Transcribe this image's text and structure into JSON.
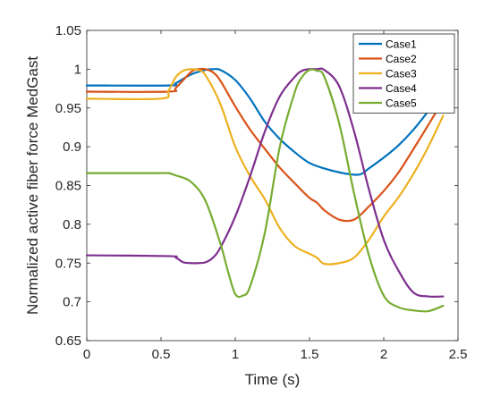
{
  "chart_data": {
    "type": "line",
    "title": "",
    "xlabel": "Time (s)",
    "ylabel": "Normalized active fiber force  MedGast",
    "xlim": [
      0,
      2.5
    ],
    "ylim": [
      0.65,
      1.05
    ],
    "xticks": [
      "0",
      "0.5",
      "1",
      "1.5",
      "2",
      "2.5"
    ],
    "yticks": [
      "0.65",
      "0.7",
      "0.75",
      "0.8",
      "0.85",
      "0.9",
      "0.95",
      "1",
      "1.05"
    ],
    "grid": false,
    "legend_position": "top-right",
    "series": [
      {
        "name": "Case1",
        "color": "#0072BD",
        "x": [
          0,
          0.55,
          0.6,
          0.7,
          0.8,
          0.85,
          0.9,
          1.0,
          1.1,
          1.2,
          1.3,
          1.4,
          1.5,
          1.6,
          1.7,
          1.8,
          1.85,
          1.9,
          2.0,
          2.1,
          2.2,
          2.3,
          2.4
        ],
        "y": [
          0.979,
          0.979,
          0.982,
          0.993,
          0.999,
          1.0,
          0.999,
          0.986,
          0.962,
          0.932,
          0.91,
          0.893,
          0.879,
          0.872,
          0.867,
          0.864,
          0.865,
          0.872,
          0.886,
          0.902,
          0.922,
          0.946,
          0.972
        ]
      },
      {
        "name": "Case2",
        "color": "#D95319",
        "x": [
          0,
          0.55,
          0.6,
          0.7,
          0.75,
          0.8,
          0.85,
          0.9,
          1.0,
          1.1,
          1.2,
          1.3,
          1.4,
          1.5,
          1.55,
          1.6,
          1.7,
          1.8,
          1.9,
          2.0,
          2.1,
          2.2,
          2.3,
          2.4
        ],
        "y": [
          0.971,
          0.971,
          0.976,
          0.996,
          1.0,
          1.0,
          0.996,
          0.985,
          0.952,
          0.922,
          0.897,
          0.873,
          0.853,
          0.834,
          0.828,
          0.818,
          0.806,
          0.806,
          0.823,
          0.843,
          0.867,
          0.897,
          0.928,
          0.96
        ]
      },
      {
        "name": "Case3",
        "color": "#EDB120",
        "x": [
          0,
          0.5,
          0.55,
          0.6,
          0.65,
          0.7,
          0.75,
          0.8,
          0.9,
          1.0,
          1.1,
          1.2,
          1.3,
          1.4,
          1.5,
          1.55,
          1.6,
          1.7,
          1.8,
          1.9,
          2.0,
          2.1,
          2.2,
          2.3,
          2.4
        ],
        "y": [
          0.962,
          0.962,
          0.972,
          0.99,
          0.998,
          1.0,
          0.999,
          0.992,
          0.955,
          0.9,
          0.862,
          0.832,
          0.795,
          0.772,
          0.762,
          0.757,
          0.749,
          0.75,
          0.757,
          0.78,
          0.81,
          0.835,
          0.865,
          0.9,
          0.94
        ]
      },
      {
        "name": "Case4",
        "color": "#7E2F8E",
        "x": [
          0,
          0.55,
          0.6,
          0.65,
          0.7,
          0.75,
          0.8,
          0.85,
          0.9,
          1.0,
          1.1,
          1.2,
          1.3,
          1.4,
          1.45,
          1.5,
          1.55,
          1.6,
          1.7,
          1.8,
          1.9,
          2.0,
          2.1,
          2.2,
          2.3,
          2.4
        ],
        "y": [
          0.76,
          0.759,
          0.757,
          0.751,
          0.75,
          0.75,
          0.751,
          0.757,
          0.77,
          0.81,
          0.862,
          0.92,
          0.965,
          0.99,
          0.998,
          1.0,
          1.0,
          0.999,
          0.978,
          0.92,
          0.845,
          0.78,
          0.74,
          0.712,
          0.707,
          0.707
        ]
      },
      {
        "name": "Case5",
        "color": "#77AC30",
        "x": [
          0,
          0.5,
          0.55,
          0.6,
          0.7,
          0.8,
          0.9,
          0.95,
          1.0,
          1.05,
          1.1,
          1.2,
          1.3,
          1.4,
          1.45,
          1.5,
          1.55,
          1.6,
          1.7,
          1.8,
          1.9,
          2.0,
          2.1,
          2.2,
          2.3,
          2.4
        ],
        "y": [
          0.866,
          0.866,
          0.866,
          0.863,
          0.855,
          0.83,
          0.775,
          0.74,
          0.71,
          0.708,
          0.72,
          0.79,
          0.9,
          0.97,
          0.99,
          0.999,
          0.998,
          0.99,
          0.93,
          0.84,
          0.76,
          0.708,
          0.693,
          0.689,
          0.688,
          0.695
        ]
      }
    ]
  }
}
